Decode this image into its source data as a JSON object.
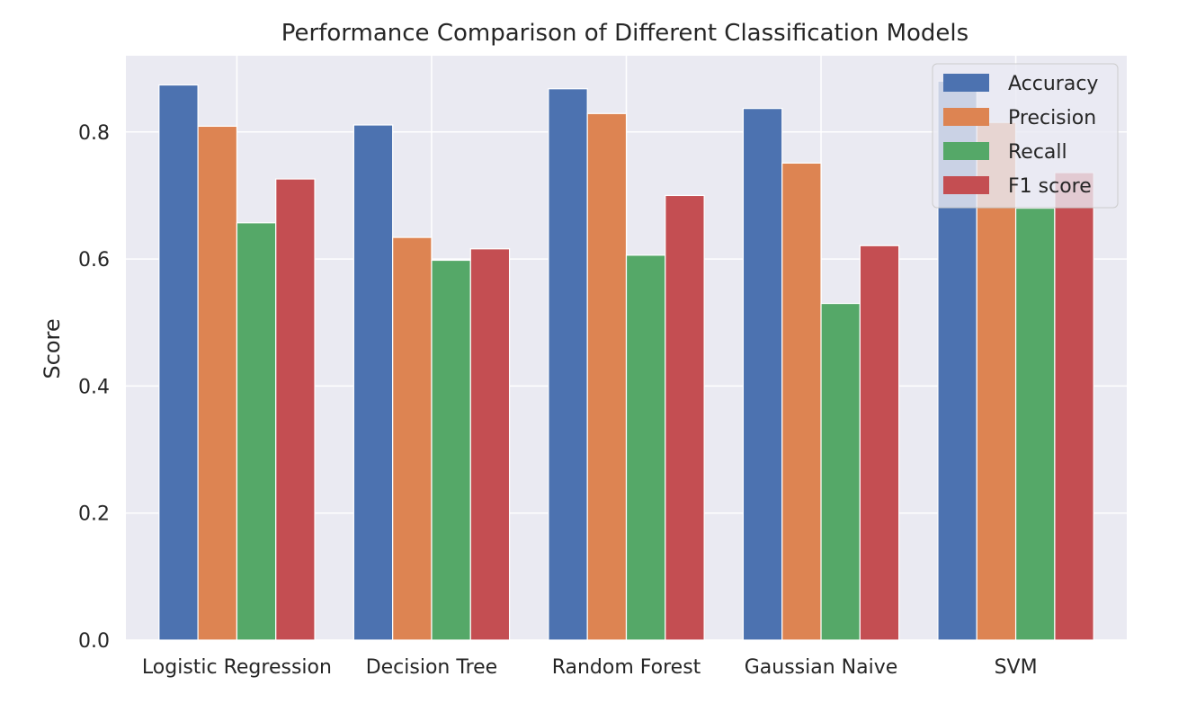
{
  "chart_data": {
    "type": "bar",
    "title": "Performance Comparison of Different Classification Models",
    "xlabel": "",
    "ylabel": "Score",
    "ylim": [
      0,
      0.92
    ],
    "yticks": [
      "0.0",
      "0.2",
      "0.4",
      "0.6",
      "0.8"
    ],
    "grid": true,
    "legend_position": "top-right",
    "categories": [
      "Logistic Regression",
      "Decision Tree",
      "Random Forest",
      "Gaussian Naive",
      "SVM"
    ],
    "series": [
      {
        "name": "Accuracy",
        "color": "#4c72b0",
        "values": [
          0.874,
          0.811,
          0.868,
          0.837,
          0.88
        ]
      },
      {
        "name": "Precision",
        "color": "#dd8452",
        "values": [
          0.809,
          0.634,
          0.829,
          0.751,
          0.815
        ]
      },
      {
        "name": "Recall",
        "color": "#55a868",
        "values": [
          0.657,
          0.598,
          0.606,
          0.53,
          0.68
        ]
      },
      {
        "name": "F1 score",
        "color": "#c44e52",
        "values": [
          0.726,
          0.616,
          0.7,
          0.621,
          0.736
        ]
      }
    ]
  }
}
